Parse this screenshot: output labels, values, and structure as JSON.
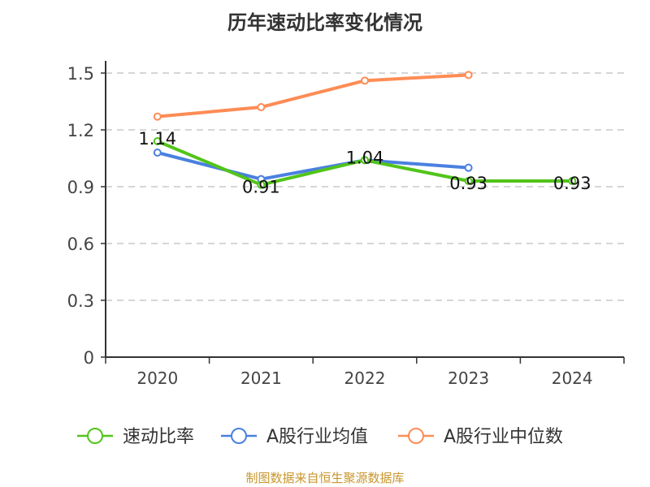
{
  "chart_data": {
    "type": "line",
    "title": "历年速动比率变化情况",
    "categories": [
      "2020",
      "2021",
      "2022",
      "2023",
      "2024"
    ],
    "ylim": [
      0,
      1.5
    ],
    "yticks": [
      0,
      0.3,
      0.6,
      0.9,
      1.2,
      1.5
    ],
    "ytick_labels": [
      "0",
      "0.3",
      "0.6",
      "0.9",
      "1.2",
      "1.5"
    ],
    "grid": true,
    "legend_position": "bottom",
    "series": [
      {
        "name": "速动比率",
        "color": "#52c41a",
        "values": [
          1.14,
          0.91,
          1.04,
          0.93,
          0.93
        ],
        "labels": [
          "1.14",
          "0.91",
          "1.04",
          "0.93",
          "0.93"
        ]
      },
      {
        "name": "A股行业均值",
        "color": "#4a80e0",
        "values": [
          1.08,
          0.94,
          1.04,
          1.0,
          null
        ]
      },
      {
        "name": "A股行业中位数",
        "color": "#ff8c55",
        "values": [
          1.27,
          1.32,
          1.46,
          1.49,
          null
        ]
      }
    ]
  },
  "footer": "制图数据来自恒生聚源数据库"
}
